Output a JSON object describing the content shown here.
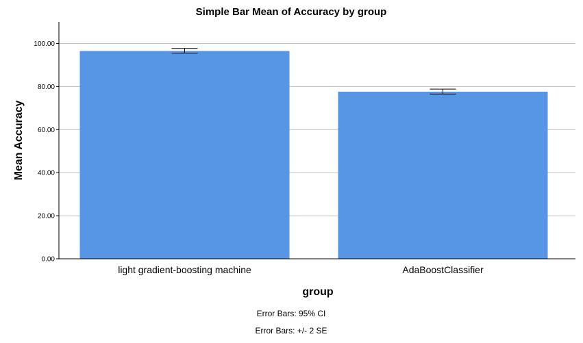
{
  "chart_data": {
    "type": "bar",
    "title": "Simple Bar Mean of Accuracy by group",
    "xlabel": "group",
    "ylabel": "Mean Accuracy",
    "categories": [
      "light gradient-boosting machine",
      "AdaBoostClassifier"
    ],
    "values": [
      96.5,
      77.6
    ],
    "error_bars": [
      {
        "low": 95.5,
        "high": 97.7
      },
      {
        "low": 76.5,
        "high": 78.8
      }
    ],
    "y_ticks": [
      "0.00",
      "20.00",
      "40.00",
      "60.00",
      "80.00",
      "100.00"
    ],
    "ylim": [
      0,
      110
    ],
    "grid": true,
    "bar_color": "#5796e5",
    "notes": [
      "Error Bars: 95% CI",
      "Error Bars: +/- 2 SE"
    ]
  }
}
